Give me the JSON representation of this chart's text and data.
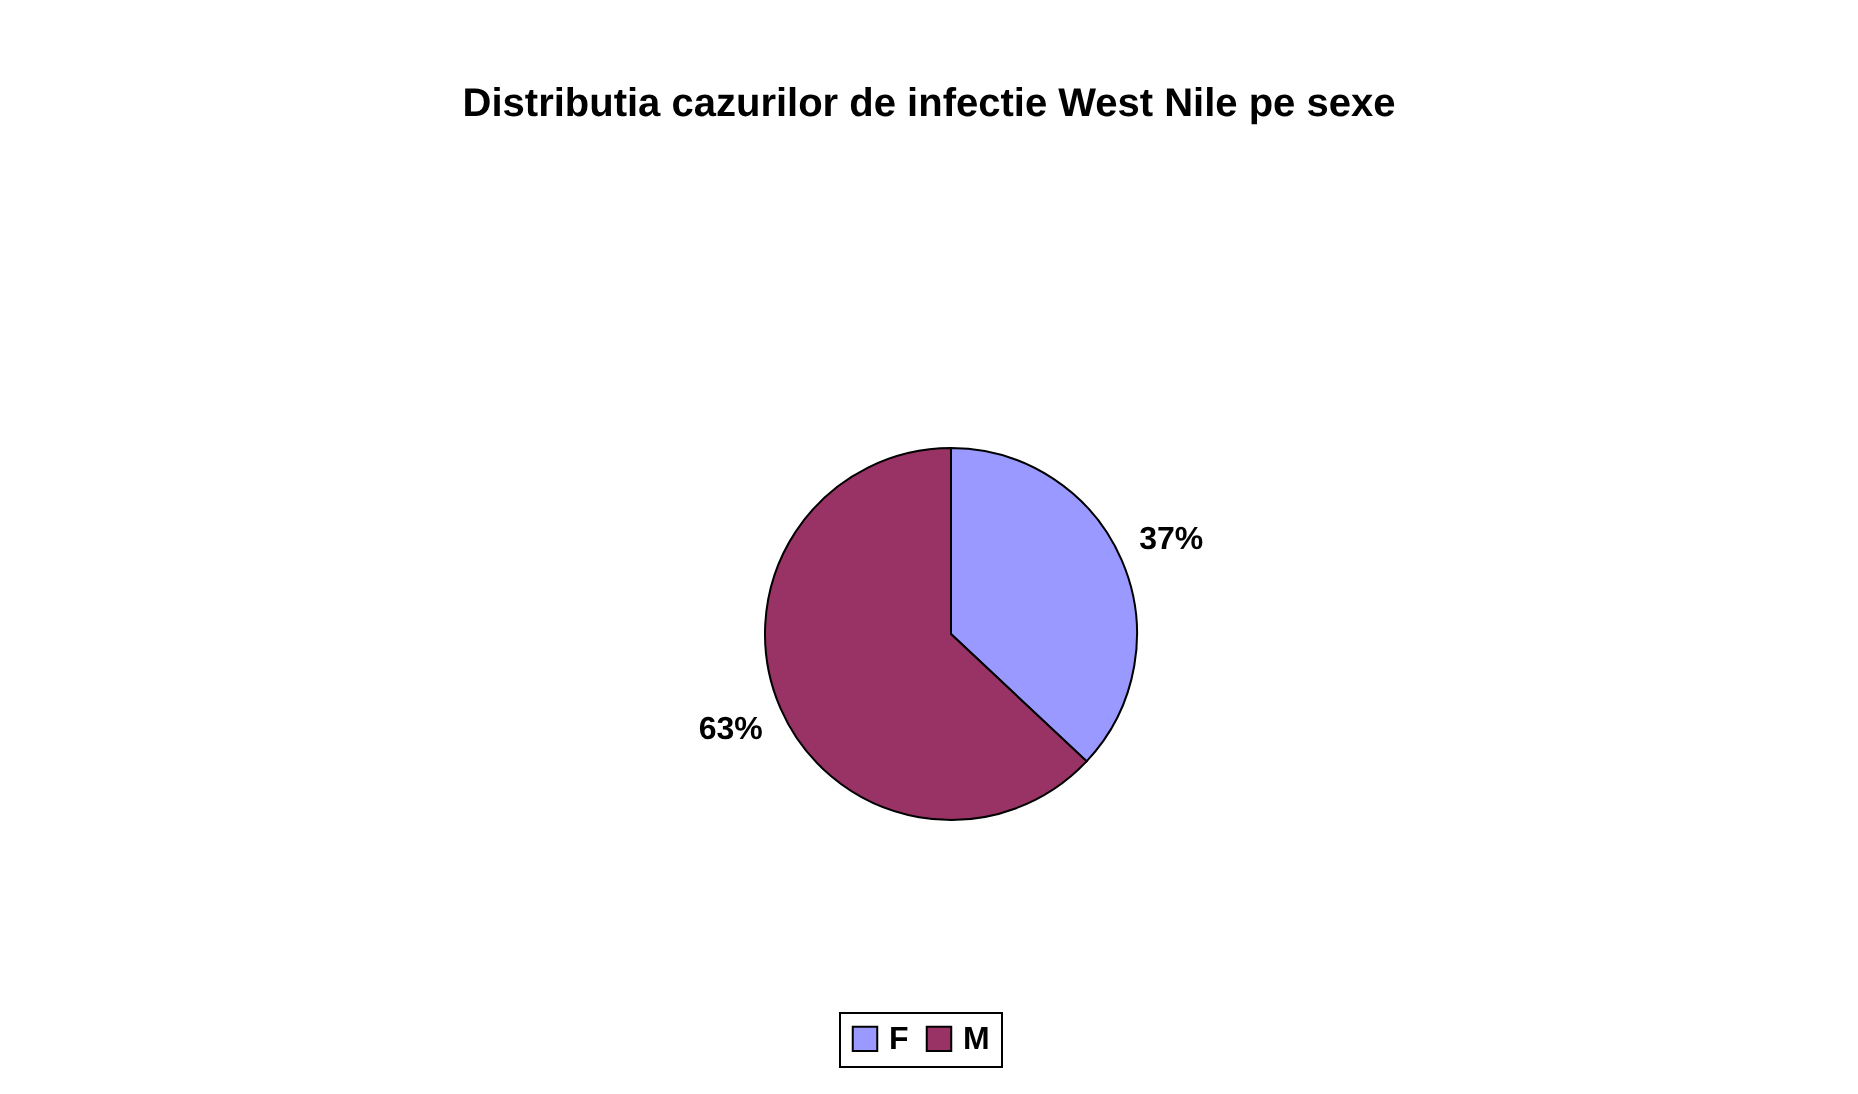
{
  "chart_data": {
    "type": "pie",
    "title": "Distributia cazurilor de infectie West Nile pe sexe",
    "categories": [
      "F",
      "M"
    ],
    "values": [
      37,
      63
    ],
    "colors": [
      "#9999ff",
      "#993366"
    ],
    "value_labels": [
      "37%",
      "63%"
    ],
    "legend": "bottom"
  }
}
